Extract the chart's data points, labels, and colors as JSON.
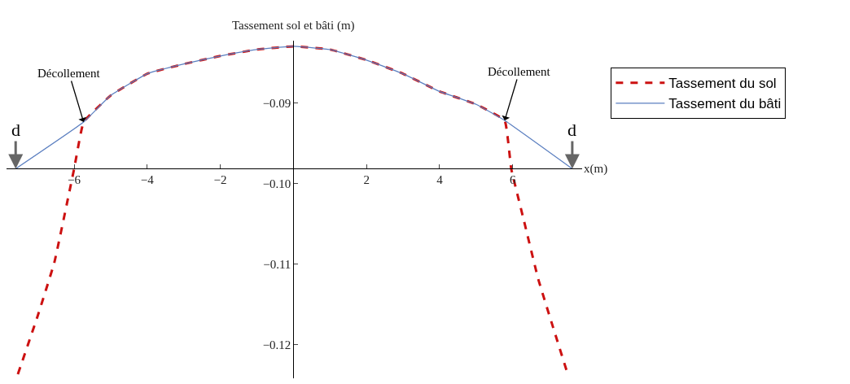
{
  "chart_data": {
    "type": "line",
    "xlabel": "x(m)",
    "ylabel": "Tassement sol et bâti (m)",
    "xlim": [
      -7.85,
      7.9
    ],
    "ylim": [
      -0.1242,
      -0.0823
    ],
    "xticks": [
      -6,
      -4,
      -2,
      2,
      4,
      6
    ],
    "yticks": [
      {
        "value": -0.09,
        "label": "−0.09"
      },
      {
        "value": -0.1,
        "label": "−0.10"
      },
      {
        "value": -0.11,
        "label": "−0.11"
      },
      {
        "value": -0.12,
        "label": "−0.12"
      }
    ],
    "series": [
      {
        "name": "Tassement du sol",
        "color": "#cc1111",
        "line_style": "dashed",
        "x": [
          -7.54,
          -7.0,
          -6.54,
          -6.0,
          -5.74,
          -5.0,
          -4.0,
          -3.0,
          -2.0,
          -1.0,
          0,
          1.0,
          2.0,
          3.0,
          4.0,
          5.0,
          5.78,
          5.96,
          6.3,
          6.7,
          7.1,
          7.48
        ],
        "values": [
          -0.1237,
          -0.1165,
          -0.1098,
          -0.0982,
          -0.0924,
          -0.0891,
          -0.0864,
          -0.0852,
          -0.0842,
          -0.0834,
          -0.083,
          -0.0834,
          -0.0847,
          -0.0864,
          -0.0886,
          -0.0902,
          -0.0922,
          -0.0982,
          -0.1045,
          -0.1119,
          -0.1178,
          -0.1233
        ]
      },
      {
        "name": "Tassement du bâti",
        "color": "#5b7fc0",
        "line_style": "solid",
        "x": [
          -7.6,
          -5.74,
          -5.0,
          -4.0,
          -3.0,
          -2.0,
          -1.0,
          0,
          1.0,
          2.0,
          3.0,
          4.0,
          5.0,
          5.78,
          7.63
        ],
        "values": [
          -0.0982,
          -0.0924,
          -0.0891,
          -0.0864,
          -0.0852,
          -0.0842,
          -0.0834,
          -0.083,
          -0.0834,
          -0.0847,
          -0.0864,
          -0.0886,
          -0.0902,
          -0.0922,
          -0.0982
        ]
      }
    ],
    "annotations": [
      {
        "text": "Décollement",
        "x": -5.74,
        "y": -0.0924
      },
      {
        "text": "Décollement",
        "x": 5.78,
        "y": -0.0922
      },
      {
        "text": "d",
        "x": -7.6,
        "y": -0.0982
      },
      {
        "text": "d",
        "x": 7.63,
        "y": -0.0982
      }
    ],
    "legend": "right"
  }
}
